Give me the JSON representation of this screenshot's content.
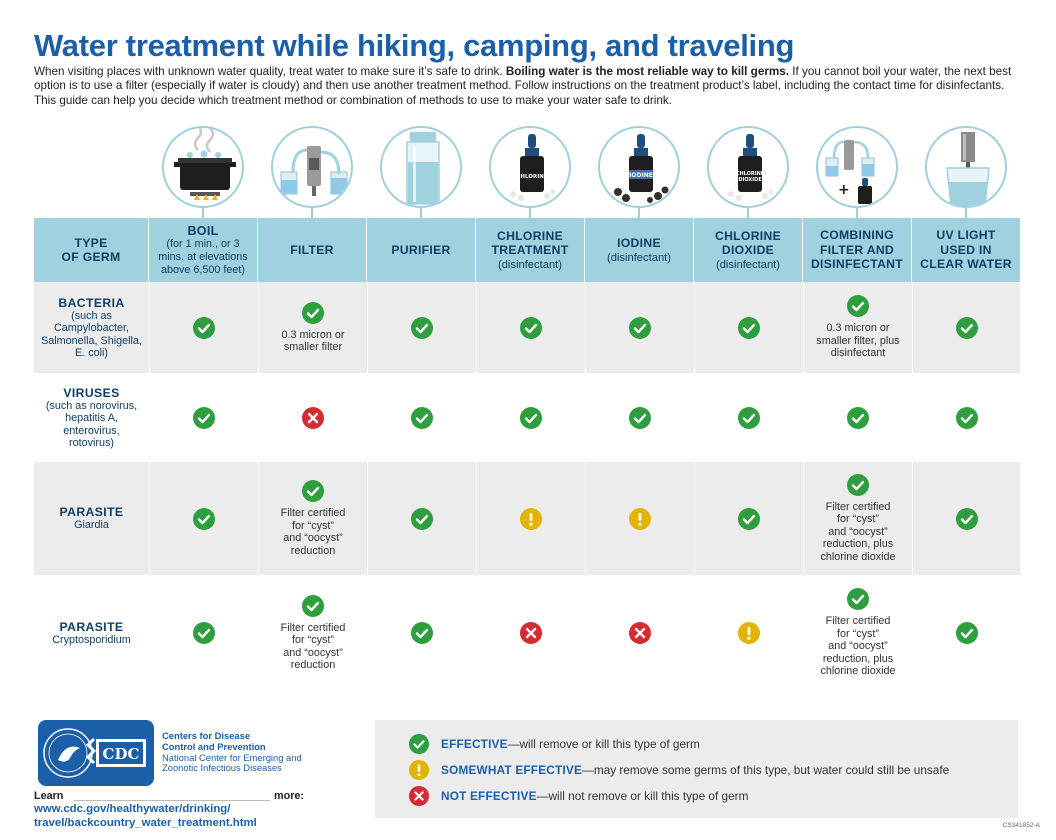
{
  "header": {
    "title": "Water treatment while hiking, camping, and traveling",
    "intro_before": "When visiting places with unknown water quality, treat water to make sure it’s safe to drink. ",
    "intro_bold": "Boiling water is the most reliable way to kill germs.",
    "intro_after": " If you cannot boil your water, the next best option is to use a filter (especially if water is cloudy) and then use another treatment method. Follow instructions on the treatment product’s label, including the contact time for disinfectants. This guide can help you decide which treatment method or combination of methods to use to make your water safe to drink."
  },
  "icons": {
    "boil": "boiling-pot-icon",
    "filter": "water-filter-icon",
    "purifier": "purifier-bottle-icon",
    "chlorine": "chlorine-bottle-icon",
    "iodine": "iodine-bottle-icon",
    "chlorine_dioxide": "chlorine-dioxide-bottle-icon",
    "combo": "filter-plus-disinfectant-icon",
    "uv": "uv-light-icon",
    "bottle_labels": {
      "chlorine": "CHLORINE",
      "iodine": "IODINE",
      "chlorine_dioxide_1": "CHLORINE",
      "chlorine_dioxide_2": "DIOXIDE"
    }
  },
  "table": {
    "headers": {
      "germ": {
        "main1": "TYPE",
        "main2": "OF GERM"
      },
      "boil": {
        "main": "BOIL",
        "sub1": "(for 1 min., or 3",
        "sub2": "mins. at elevations",
        "sub3": "above 6,500 feet)"
      },
      "filter": {
        "main": "FILTER"
      },
      "purifier": {
        "main": "PURIFIER"
      },
      "chlorine": {
        "main1": "CHLORINE",
        "main2": "TREATMENT",
        "sub": "(disinfectant)"
      },
      "iodine": {
        "main": "IODINE",
        "sub": "(disinfectant)"
      },
      "chlorine_dioxide": {
        "main1": "CHLORINE",
        "main2": "DIOXIDE",
        "sub": "(disinfectant)"
      },
      "combo": {
        "main1": "COMBINING",
        "main2": "FILTER AND",
        "main3": "DISINFECTANT"
      },
      "uv": {
        "main1": "UV LIGHT",
        "main2": "USED IN",
        "main3": "CLEAR WATER"
      }
    },
    "rows": [
      {
        "label": "BACTERIA",
        "sub": [
          "(such as",
          "Campylobacter,",
          "Salmonella, Shigella,",
          "E. coli)"
        ],
        "cells": [
          "effective",
          "effective",
          "effective",
          "effective",
          "effective",
          "effective",
          "effective",
          "effective"
        ],
        "notes": {
          "filter": [
            "0.3 micron or",
            "smaller filter"
          ],
          "combo": [
            "0.3 micron or",
            "smaller filter, plus",
            "disinfectant"
          ]
        }
      },
      {
        "label": "VIRUSES",
        "sub": [
          "(such as norovirus,",
          "hepatitis A,",
          "enterovirus,",
          "rotovirus)"
        ],
        "cells": [
          "effective",
          "not-effective",
          "effective",
          "effective",
          "effective",
          "effective",
          "effective",
          "effective"
        ]
      },
      {
        "label": "PARASITE",
        "sub": [
          "Giardia"
        ],
        "cells": [
          "effective",
          "effective",
          "effective",
          "somewhat",
          "somewhat",
          "effective",
          "effective",
          "effective"
        ],
        "notes": {
          "filter": [
            "Filter certified",
            "for “cyst”",
            "and “oocyst”",
            "reduction"
          ],
          "combo": [
            "Filter certified",
            "for “cyst”",
            "and “oocyst”",
            "reduction, plus",
            "chlorine dioxide"
          ]
        }
      },
      {
        "label": "PARASITE",
        "sub": [
          "Cryptosporidium"
        ],
        "cells": [
          "effective",
          "effective",
          "effective",
          "not-effective",
          "not-effective",
          "somewhat",
          "effective",
          "effective"
        ],
        "notes": {
          "filter": [
            "Filter certified",
            "for “cyst”",
            "and “oocyst”",
            "reduction"
          ],
          "combo": [
            "Filter certified",
            "for “cyst”",
            "and “oocyst”",
            "reduction, plus",
            "chlorine dioxide"
          ]
        }
      }
    ]
  },
  "footer": {
    "logo_text": "CDC",
    "org_name_1": "Centers for Disease",
    "org_name_2": "Control and Prevention",
    "org_sub_1": "National Center for Emerging and",
    "org_sub_2": "Zoonotic Infectious Diseases",
    "learn": "Learn",
    "more": "more:",
    "url_1": "www.cdc.gov/healthywater/drinking/",
    "url_2": "travel/backcountry_water_treatment.html",
    "code": "CS341852-A"
  },
  "legend": {
    "effective_term": "EFFECTIVE",
    "effective_desc": "—will remove or kill this type of germ",
    "somewhat_term": "SOMEWHAT EFFECTIVE",
    "somewhat_desc": "—may remove some germs of this type, but water could still be unsafe",
    "not_term": "NOT EFFECTIVE",
    "not_desc": "—will not remove or kill this type of germ"
  },
  "colors": {
    "effective": "#2e9e3e",
    "somewhat": "#e2b400",
    "not_effective": "#d62b32",
    "header_bg": "#9fd2de",
    "title": "#1a5fa8"
  }
}
